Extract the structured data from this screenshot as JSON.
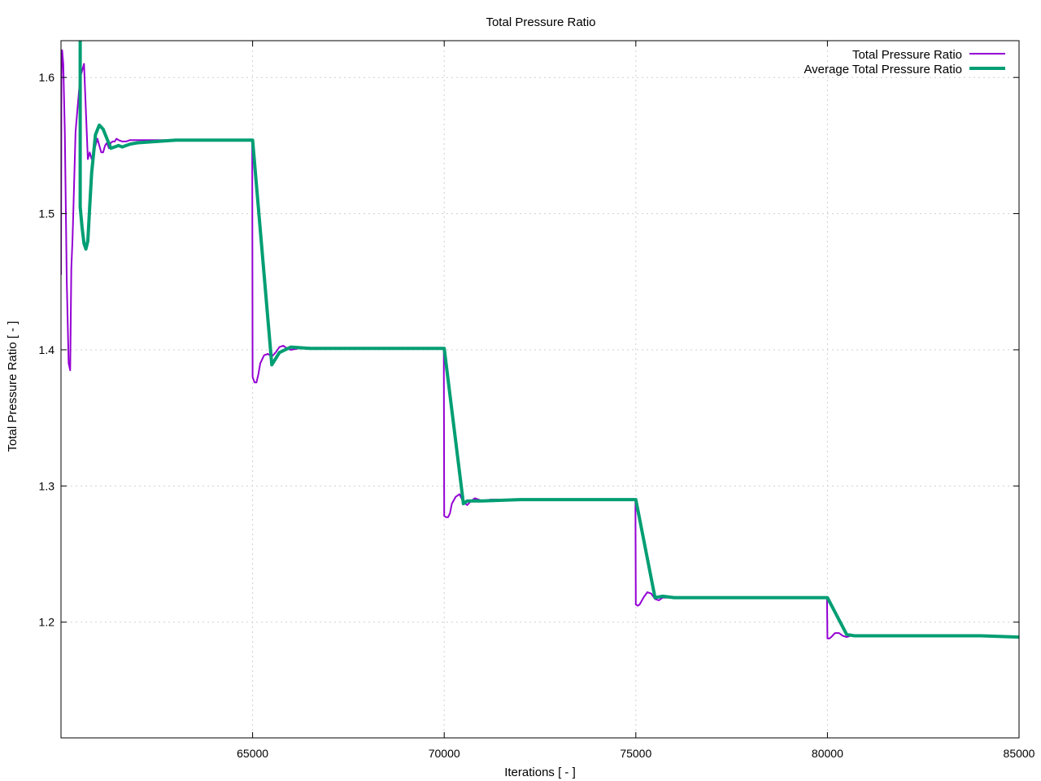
{
  "chart_data": {
    "type": "line",
    "title": "Total Pressure Ratio",
    "xlabel": "Iterations [ - ]",
    "ylabel": "Total Pressure Ratio [ - ]",
    "xlim": [
      60000,
      85000
    ],
    "ylim": [
      1.115,
      1.627
    ],
    "xticks": [
      65000,
      70000,
      75000,
      80000,
      85000
    ],
    "yticks": [
      1.2,
      1.3,
      1.4,
      1.5,
      1.6
    ],
    "grid": true,
    "legend_position": "top-right",
    "series": [
      {
        "name": "Total Pressure Ratio",
        "color": "#9400d3",
        "x": [
          60000,
          60010,
          60030,
          60060,
          60100,
          60150,
          60200,
          60240,
          60270,
          60300,
          60320,
          60380,
          60440,
          60500,
          60600,
          60700,
          60750,
          60800,
          60850,
          60900,
          60950,
          61000,
          61050,
          61100,
          61150,
          61200,
          61250,
          61300,
          61350,
          61400,
          61450,
          61500,
          61600,
          61700,
          61800,
          62000,
          62500,
          63000,
          64000,
          64990,
          65000,
          65050,
          65100,
          65150,
          65200,
          65300,
          65400,
          65500,
          65600,
          65700,
          65800,
          65900,
          66000,
          66200,
          66500,
          67000,
          68000,
          69000,
          69990,
          70000,
          70050,
          70100,
          70150,
          70200,
          70300,
          70400,
          70500,
          70600,
          70700,
          70800,
          70900,
          71000,
          71200,
          71500,
          72000,
          73000,
          74000,
          74990,
          75000,
          75050,
          75100,
          75200,
          75300,
          75400,
          75500,
          75600,
          75700,
          75800,
          76000,
          76500,
          77000,
          78000,
          79000,
          79990,
          80000,
          80050,
          80100,
          80200,
          80300,
          80400,
          80500,
          80600,
          80700,
          81000,
          81500,
          82000,
          83000,
          84000,
          85000
        ],
        "y": [
          1.455,
          1.6,
          1.62,
          1.61,
          1.56,
          1.45,
          1.39,
          1.385,
          1.46,
          1.48,
          1.5,
          1.56,
          1.58,
          1.6,
          1.61,
          1.54,
          1.545,
          1.54,
          1.545,
          1.55,
          1.555,
          1.55,
          1.545,
          1.545,
          1.55,
          1.552,
          1.548,
          1.552,
          1.553,
          1.553,
          1.555,
          1.554,
          1.553,
          1.553,
          1.554,
          1.554,
          1.554,
          1.554,
          1.554,
          1.554,
          1.38,
          1.376,
          1.376,
          1.382,
          1.39,
          1.396,
          1.397,
          1.395,
          1.398,
          1.402,
          1.403,
          1.401,
          1.4,
          1.401,
          1.401,
          1.401,
          1.401,
          1.401,
          1.401,
          1.278,
          1.277,
          1.277,
          1.28,
          1.287,
          1.292,
          1.294,
          1.288,
          1.286,
          1.289,
          1.291,
          1.29,
          1.289,
          1.29,
          1.29,
          1.29,
          1.29,
          1.29,
          1.29,
          1.213,
          1.212,
          1.213,
          1.218,
          1.222,
          1.221,
          1.217,
          1.216,
          1.218,
          1.218,
          1.218,
          1.218,
          1.218,
          1.218,
          1.218,
          1.218,
          1.188,
          1.188,
          1.189,
          1.192,
          1.192,
          1.19,
          1.189,
          1.19,
          1.19,
          1.19,
          1.19,
          1.19,
          1.19,
          1.19,
          1.189
        ]
      },
      {
        "name": "Average Total Pressure Ratio",
        "color": "#009e73",
        "x": [
          60500,
          60500,
          60550,
          60600,
          60650,
          60700,
          60750,
          60800,
          60900,
          61000,
          61100,
          61200,
          61300,
          61400,
          61500,
          61600,
          61700,
          61800,
          62000,
          62500,
          63000,
          64000,
          65000,
          65500,
          65700,
          66000,
          66500,
          67000,
          68000,
          69000,
          70000,
          70500,
          70600,
          71000,
          72000,
          73000,
          74000,
          75000,
          75500,
          75700,
          76000,
          77000,
          78000,
          79000,
          80000,
          80500,
          80700,
          81000,
          82000,
          83000,
          84000,
          85000
        ],
        "y": [
          1.627,
          1.505,
          1.49,
          1.478,
          1.474,
          1.48,
          1.505,
          1.53,
          1.558,
          1.565,
          1.562,
          1.555,
          1.548,
          1.549,
          1.55,
          1.549,
          1.55,
          1.551,
          1.552,
          1.553,
          1.554,
          1.554,
          1.554,
          1.389,
          1.398,
          1.402,
          1.401,
          1.401,
          1.401,
          1.401,
          1.401,
          1.287,
          1.289,
          1.289,
          1.29,
          1.29,
          1.29,
          1.29,
          1.218,
          1.219,
          1.218,
          1.218,
          1.218,
          1.218,
          1.218,
          1.191,
          1.19,
          1.19,
          1.19,
          1.19,
          1.19,
          1.189
        ]
      }
    ]
  }
}
